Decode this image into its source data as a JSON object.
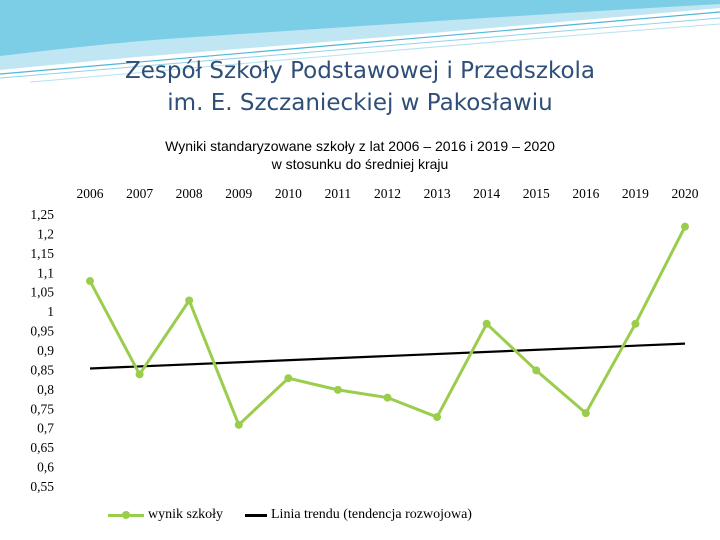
{
  "slide": {
    "title_line1": "Zespół Szkoły Podstawowej i Przedszkola",
    "title_line2": "im. E. Szczanieckiej w Pakosławiu"
  },
  "colors": {
    "title": "#2f4f78",
    "school_series": "#9acd4c",
    "trend_line": "#000000",
    "decoration": "#4fb6d8"
  },
  "chart_data": {
    "type": "line",
    "title_line1": "Wyniki  standaryzowane szkoły z lat 2006 – 2016 i 2019 – 2020",
    "title_line2": "w stosunku do średniej kraju",
    "categories": [
      "2006",
      "2007",
      "2008",
      "2009",
      "2010",
      "2011",
      "2012",
      "2013",
      "2014",
      "2015",
      "2016",
      "2019",
      "2020"
    ],
    "series": [
      {
        "name": "wynik szkoły",
        "values": [
          1.08,
          0.84,
          1.03,
          0.71,
          0.83,
          0.8,
          0.78,
          0.73,
          0.97,
          0.85,
          0.74,
          0.97,
          1.22
        ]
      },
      {
        "name": "Linia trendu (tendencja rozwojowa)",
        "values": [
          0.855,
          0.861,
          0.866,
          0.871,
          0.876,
          0.882,
          0.887,
          0.892,
          0.898,
          0.903,
          0.908,
          0.914,
          0.919
        ]
      }
    ],
    "y_ticks": [
      "1,25",
      "1,2",
      "1,15",
      "1,1",
      "1,05",
      "1",
      "0,95",
      "0,9",
      "0,85",
      "0,8",
      "0,75",
      "0,7",
      "0,65",
      "0,6",
      "0,55"
    ],
    "ylim": [
      0.55,
      1.25
    ],
    "x_axis_position": "top",
    "grid": false,
    "legend_position": "bottom"
  }
}
